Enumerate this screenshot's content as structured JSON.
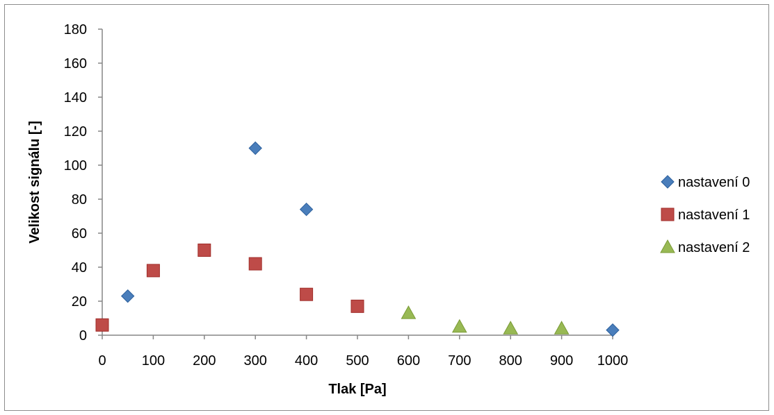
{
  "chart_data": {
    "type": "scatter",
    "title": "",
    "xlabel": "Tlak [Pa]",
    "ylabel": "Velikost signálu [-]",
    "xlim": [
      0,
      1000
    ],
    "ylim": [
      0,
      180
    ],
    "x_ticks": [
      0,
      100,
      200,
      300,
      400,
      500,
      600,
      700,
      800,
      900,
      1000
    ],
    "y_ticks": [
      0,
      20,
      40,
      60,
      80,
      100,
      120,
      140,
      160,
      180
    ],
    "grid": false,
    "legend_position": "right",
    "series": [
      {
        "name": "nastavení 0",
        "marker": "diamond",
        "color": "#4a7ebb",
        "points": [
          [
            0,
            6
          ],
          [
            50,
            23
          ],
          [
            300,
            110
          ],
          [
            400,
            74
          ],
          [
            1000,
            3
          ]
        ]
      },
      {
        "name": "nastavení 1",
        "marker": "square",
        "color": "#be4b48",
        "points": [
          [
            0,
            6
          ],
          [
            100,
            38
          ],
          [
            200,
            50
          ],
          [
            300,
            42
          ],
          [
            400,
            24
          ],
          [
            500,
            17
          ]
        ]
      },
      {
        "name": "nastavení 2",
        "marker": "triangle",
        "color": "#98b954",
        "points": [
          [
            600,
            13
          ],
          [
            700,
            5
          ],
          [
            800,
            4
          ],
          [
            900,
            4
          ]
        ]
      }
    ]
  }
}
